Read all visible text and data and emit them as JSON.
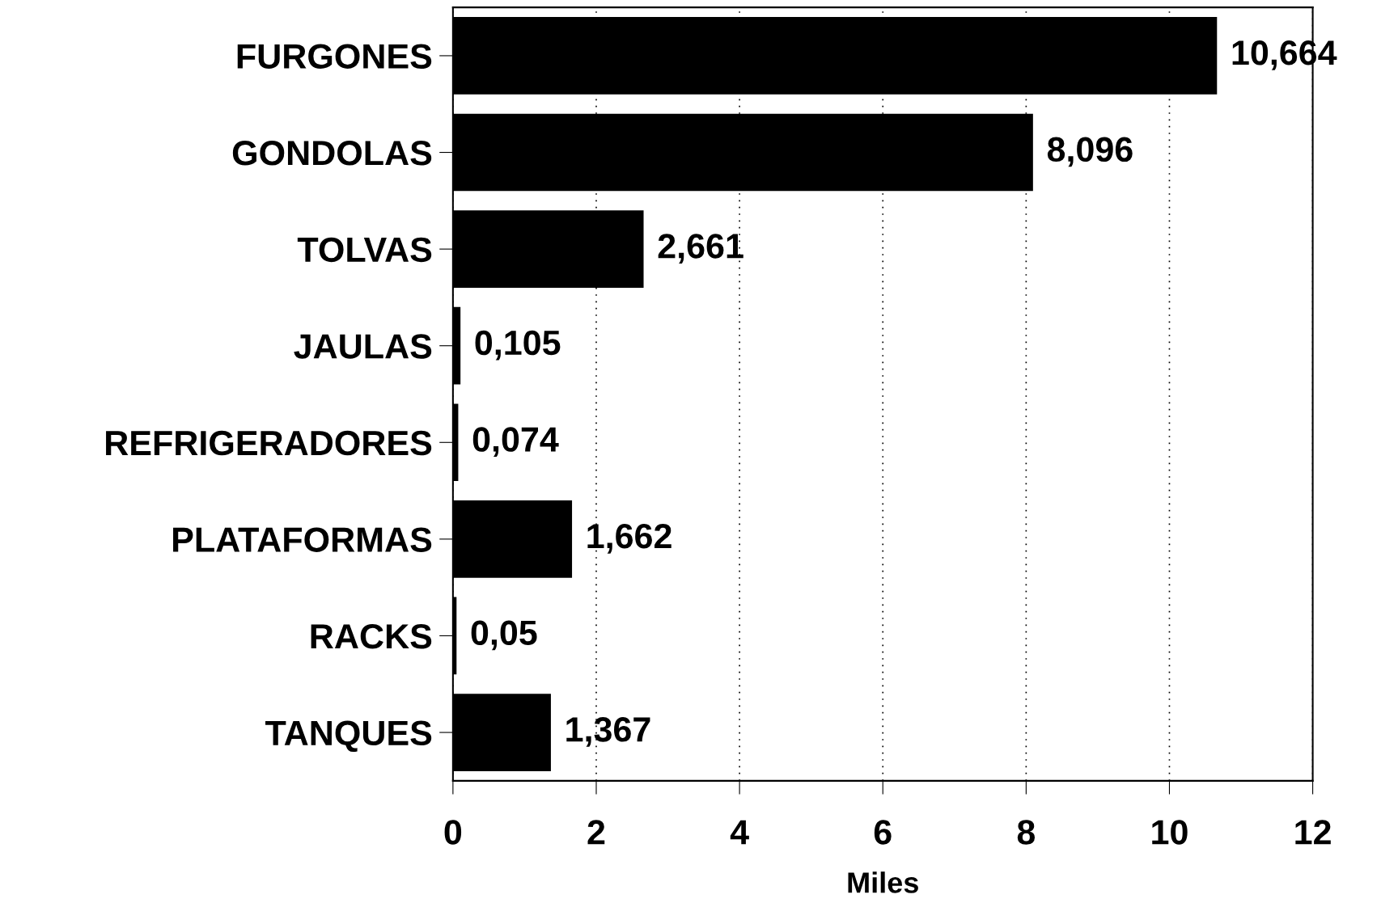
{
  "chart_data": {
    "type": "bar",
    "orientation": "horizontal",
    "xlabel": "Miles",
    "categories": [
      "FURGONES",
      "GONDOLAS",
      "TOLVAS",
      "JAULAS",
      "REFRIGERADORES",
      "PLATAFORMAS",
      "RACKS",
      "TANQUES"
    ],
    "values": [
      10.664,
      8.096,
      2.661,
      0.105,
      0.074,
      1.662,
      0.05,
      1.367
    ],
    "value_labels": [
      "10,664",
      "8,096",
      "2,661",
      "0,105",
      "0,074",
      "1,662",
      "0,05",
      "1,367"
    ],
    "color": "#000000",
    "xlim": [
      0,
      12
    ],
    "xticks": [
      0,
      2,
      4,
      6,
      8,
      10,
      12
    ],
    "grid": "x",
    "legend": false
  }
}
